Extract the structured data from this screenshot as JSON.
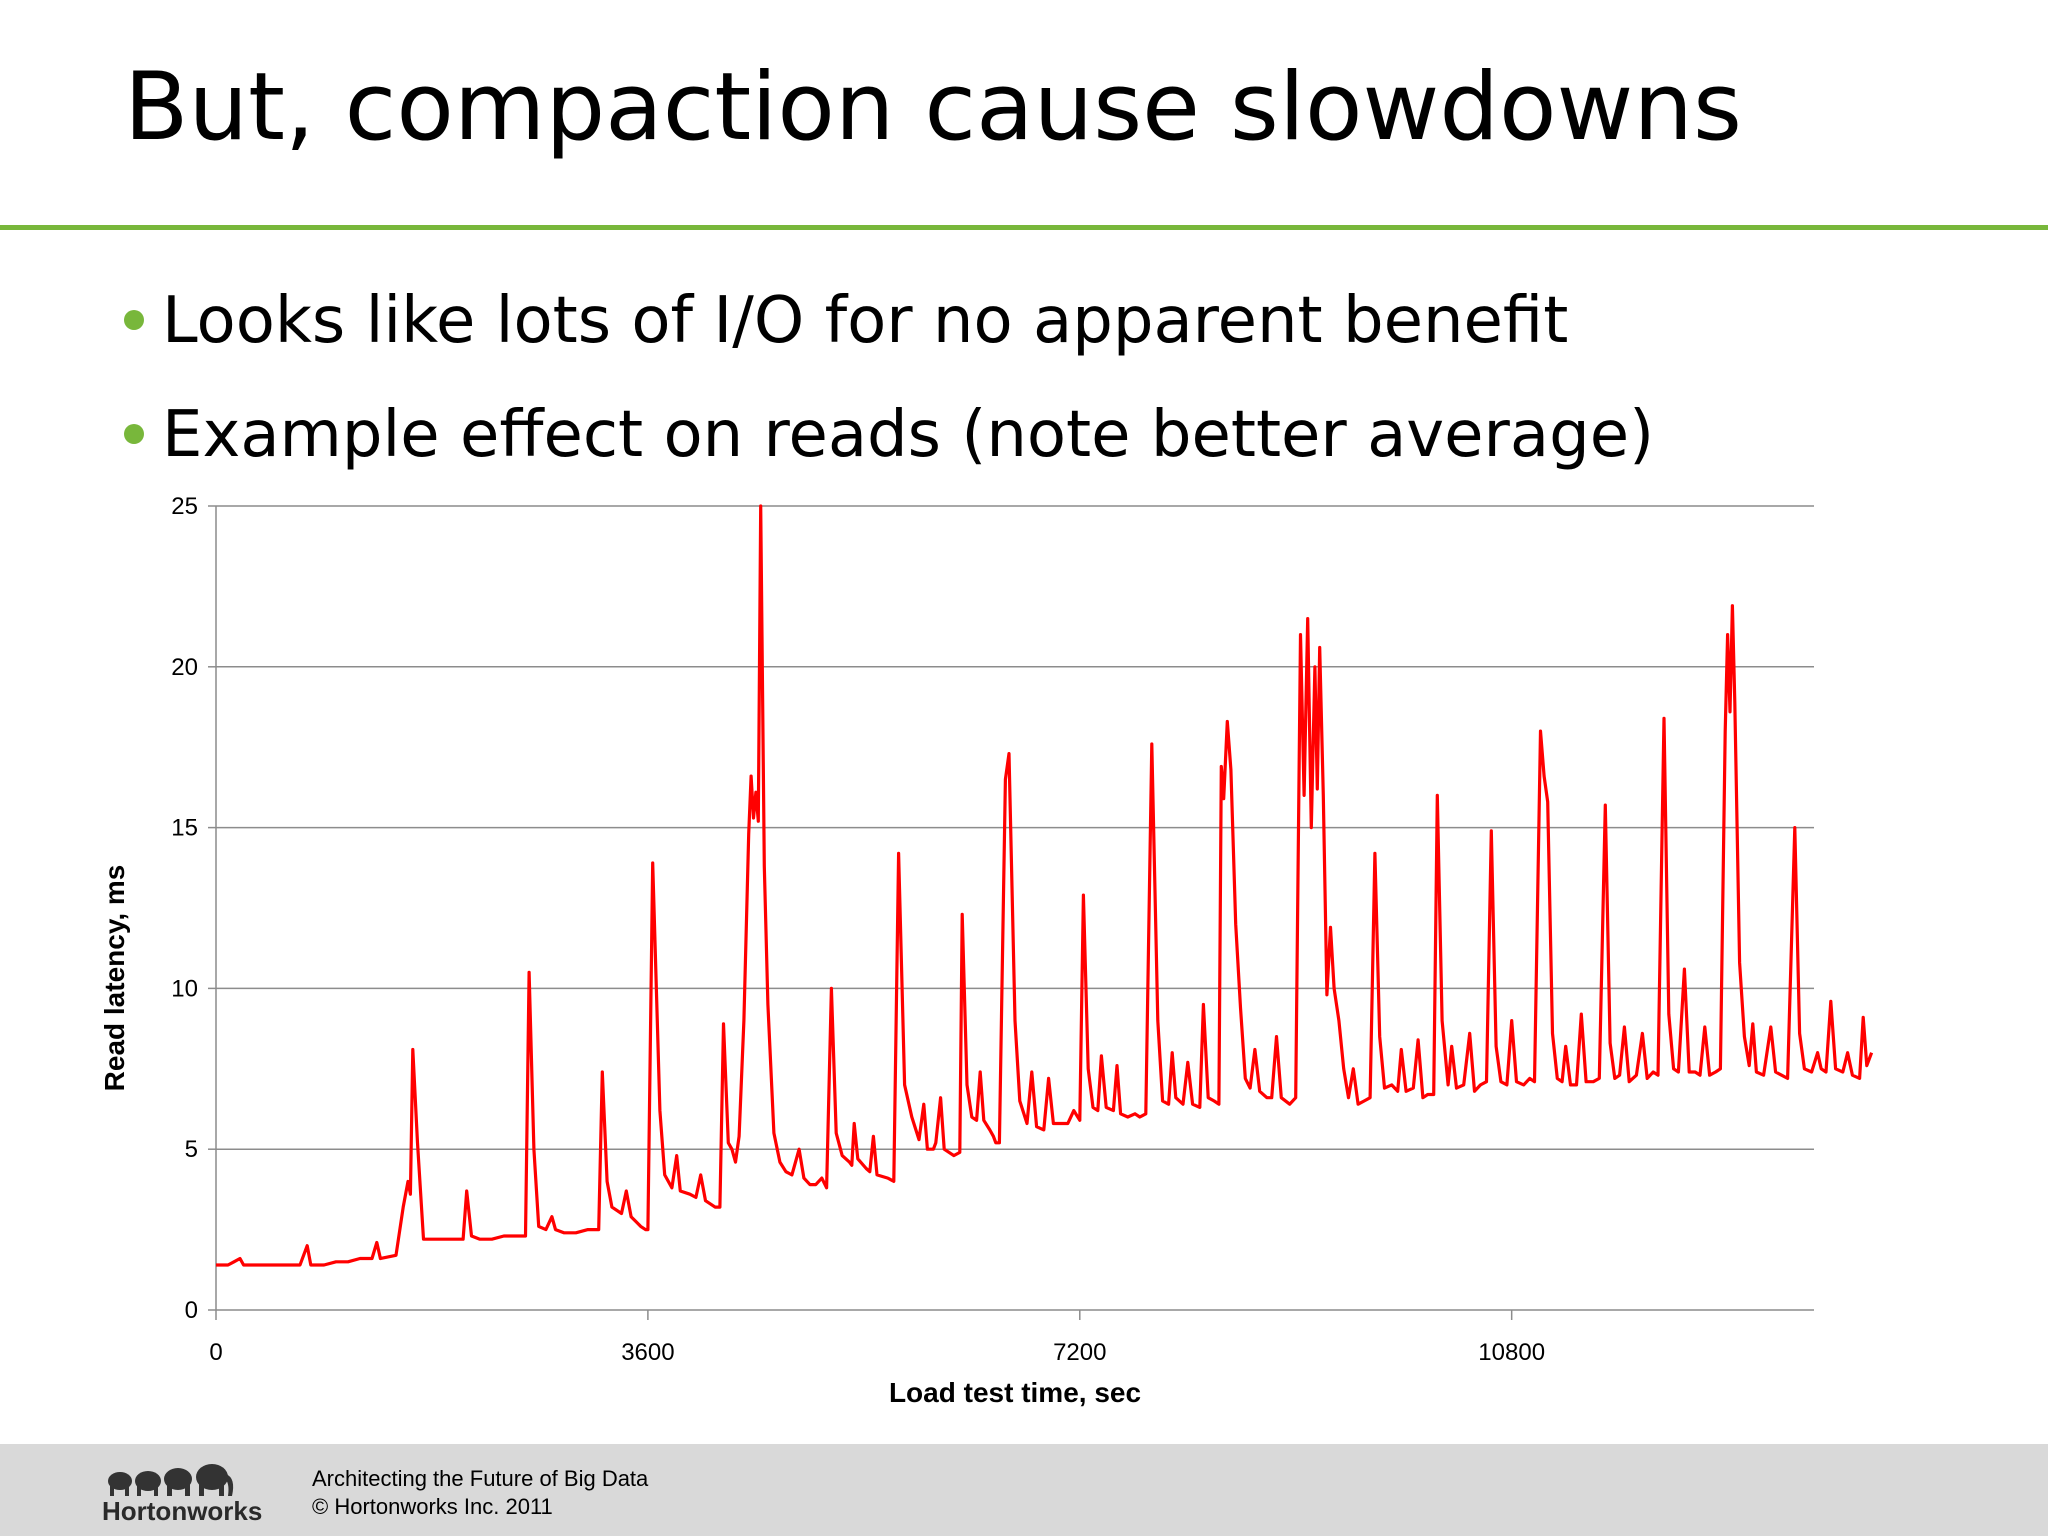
{
  "slide": {
    "title": "But, compaction cause slowdowns",
    "bullets": [
      "Looks like  lots of I/O for no apparent benefit",
      "Example effect on reads (note better average)"
    ],
    "accent_color": "#78b73b"
  },
  "chart_data": {
    "type": "line",
    "xlabel": "Load test time, sec",
    "ylabel": "Read latency, ms",
    "xlim": [
      0,
      13320
    ],
    "ylim": [
      0,
      25
    ],
    "xticks": [
      0,
      3600,
      7200,
      10800
    ],
    "yticks": [
      0,
      5,
      10,
      15,
      20,
      25
    ],
    "grid": "horizontal",
    "legend": "none",
    "series": [
      {
        "color": "#ff0000",
        "points": [
          [
            0,
            1.4
          ],
          [
            100,
            1.4
          ],
          [
            150,
            1.5
          ],
          [
            200,
            1.6
          ],
          [
            230,
            1.4
          ],
          [
            300,
            1.4
          ],
          [
            400,
            1.4
          ],
          [
            500,
            1.4
          ],
          [
            600,
            1.4
          ],
          [
            700,
            1.4
          ],
          [
            760,
            2.0
          ],
          [
            790,
            1.4
          ],
          [
            900,
            1.4
          ],
          [
            1000,
            1.5
          ],
          [
            1100,
            1.5
          ],
          [
            1200,
            1.6
          ],
          [
            1300,
            1.6
          ],
          [
            1340,
            2.1
          ],
          [
            1370,
            1.6
          ],
          [
            1500,
            1.7
          ],
          [
            1560,
            3.2
          ],
          [
            1600,
            4.0
          ],
          [
            1620,
            3.6
          ],
          [
            1640,
            8.1
          ],
          [
            1680,
            5.2
          ],
          [
            1730,
            2.2
          ],
          [
            1800,
            2.2
          ],
          [
            1900,
            2.2
          ],
          [
            2000,
            2.2
          ],
          [
            2060,
            2.2
          ],
          [
            2090,
            3.7
          ],
          [
            2130,
            2.3
          ],
          [
            2200,
            2.2
          ],
          [
            2300,
            2.2
          ],
          [
            2400,
            2.3
          ],
          [
            2500,
            2.3
          ],
          [
            2580,
            2.3
          ],
          [
            2610,
            10.5
          ],
          [
            2650,
            5.0
          ],
          [
            2690,
            2.6
          ],
          [
            2750,
            2.5
          ],
          [
            2800,
            2.9
          ],
          [
            2830,
            2.5
          ],
          [
            2900,
            2.4
          ],
          [
            3000,
            2.4
          ],
          [
            3100,
            2.5
          ],
          [
            3190,
            2.5
          ],
          [
            3220,
            7.4
          ],
          [
            3260,
            4.0
          ],
          [
            3300,
            3.2
          ],
          [
            3380,
            3.0
          ],
          [
            3420,
            3.7
          ],
          [
            3460,
            2.9
          ],
          [
            3540,
            2.6
          ],
          [
            3580,
            2.5
          ],
          [
            3600,
            2.5
          ],
          [
            3640,
            13.9
          ],
          [
            3700,
            6.2
          ],
          [
            3740,
            4.2
          ],
          [
            3800,
            3.8
          ],
          [
            3840,
            4.8
          ],
          [
            3870,
            3.7
          ],
          [
            3950,
            3.6
          ],
          [
            4000,
            3.5
          ],
          [
            4040,
            4.2
          ],
          [
            4080,
            3.4
          ],
          [
            4160,
            3.2
          ],
          [
            4200,
            3.2
          ],
          [
            4230,
            8.9
          ],
          [
            4270,
            5.2
          ],
          [
            4300,
            5.0
          ],
          [
            4330,
            4.6
          ],
          [
            4360,
            5.4
          ],
          [
            4400,
            9.0
          ],
          [
            4440,
            14.8
          ],
          [
            4460,
            16.6
          ],
          [
            4480,
            15.3
          ],
          [
            4500,
            16.1
          ],
          [
            4520,
            15.2
          ],
          [
            4540,
            25.0
          ],
          [
            4570,
            13.8
          ],
          [
            4600,
            9.5
          ],
          [
            4650,
            5.5
          ],
          [
            4700,
            4.6
          ],
          [
            4750,
            4.3
          ],
          [
            4800,
            4.2
          ],
          [
            4860,
            5.0
          ],
          [
            4900,
            4.1
          ],
          [
            4950,
            3.9
          ],
          [
            5000,
            3.9
          ],
          [
            5050,
            4.1
          ],
          [
            5090,
            3.8
          ],
          [
            5130,
            10.0
          ],
          [
            5170,
            5.5
          ],
          [
            5220,
            4.8
          ],
          [
            5280,
            4.6
          ],
          [
            5300,
            4.5
          ],
          [
            5320,
            5.8
          ],
          [
            5350,
            4.7
          ],
          [
            5420,
            4.4
          ],
          [
            5450,
            4.3
          ],
          [
            5480,
            5.4
          ],
          [
            5510,
            4.2
          ],
          [
            5600,
            4.1
          ],
          [
            5650,
            4.0
          ],
          [
            5690,
            14.2
          ],
          [
            5740,
            7.0
          ],
          [
            5800,
            6.0
          ],
          [
            5860,
            5.3
          ],
          [
            5900,
            6.4
          ],
          [
            5930,
            5.0
          ],
          [
            5980,
            5.0
          ],
          [
            6000,
            5.2
          ],
          [
            6040,
            6.6
          ],
          [
            6070,
            5.0
          ],
          [
            6150,
            4.8
          ],
          [
            6200,
            4.9
          ],
          [
            6220,
            12.3
          ],
          [
            6260,
            7.0
          ],
          [
            6300,
            6.0
          ],
          [
            6340,
            5.9
          ],
          [
            6370,
            7.4
          ],
          [
            6400,
            5.9
          ],
          [
            6450,
            5.6
          ],
          [
            6480,
            5.4
          ],
          [
            6500,
            5.2
          ],
          [
            6530,
            5.2
          ],
          [
            6580,
            16.5
          ],
          [
            6610,
            17.3
          ],
          [
            6660,
            9.0
          ],
          [
            6700,
            6.5
          ],
          [
            6760,
            5.8
          ],
          [
            6800,
            7.4
          ],
          [
            6840,
            5.7
          ],
          [
            6900,
            5.6
          ],
          [
            6940,
            7.2
          ],
          [
            6980,
            5.8
          ],
          [
            7050,
            5.8
          ],
          [
            7100,
            5.8
          ],
          [
            7150,
            6.2
          ],
          [
            7200,
            5.9
          ],
          [
            7230,
            12.9
          ],
          [
            7270,
            7.5
          ],
          [
            7310,
            6.3
          ],
          [
            7350,
            6.2
          ],
          [
            7380,
            7.9
          ],
          [
            7420,
            6.3
          ],
          [
            7480,
            6.2
          ],
          [
            7510,
            7.6
          ],
          [
            7540,
            6.1
          ],
          [
            7600,
            6.0
          ],
          [
            7660,
            6.1
          ],
          [
            7700,
            6.0
          ],
          [
            7750,
            6.1
          ],
          [
            7800,
            17.6
          ],
          [
            7850,
            9.0
          ],
          [
            7890,
            6.5
          ],
          [
            7940,
            6.4
          ],
          [
            7970,
            8.0
          ],
          [
            8000,
            6.6
          ],
          [
            8060,
            6.4
          ],
          [
            8100,
            7.7
          ],
          [
            8140,
            6.4
          ],
          [
            8200,
            6.3
          ],
          [
            8230,
            9.5
          ],
          [
            8270,
            6.6
          ],
          [
            8320,
            6.5
          ],
          [
            8360,
            6.4
          ],
          [
            8380,
            16.9
          ],
          [
            8400,
            15.9
          ],
          [
            8430,
            18.3
          ],
          [
            8460,
            16.8
          ],
          [
            8500,
            12.0
          ],
          [
            8540,
            9.4
          ],
          [
            8580,
            7.2
          ],
          [
            8620,
            6.9
          ],
          [
            8660,
            8.1
          ],
          [
            8700,
            6.8
          ],
          [
            8760,
            6.6
          ],
          [
            8800,
            6.6
          ],
          [
            8840,
            8.5
          ],
          [
            8880,
            6.6
          ],
          [
            8950,
            6.4
          ],
          [
            9000,
            6.6
          ],
          [
            9040,
            21.0
          ],
          [
            9070,
            16.0
          ],
          [
            9100,
            21.5
          ],
          [
            9130,
            15.0
          ],
          [
            9160,
            20.0
          ],
          [
            9180,
            16.2
          ],
          [
            9200,
            20.6
          ],
          [
            9230,
            16.0
          ],
          [
            9260,
            9.8
          ],
          [
            9290,
            11.9
          ],
          [
            9320,
            10.0
          ],
          [
            9360,
            9.0
          ],
          [
            9400,
            7.5
          ],
          [
            9440,
            6.6
          ],
          [
            9480,
            7.5
          ],
          [
            9520,
            6.4
          ],
          [
            9570,
            6.5
          ],
          [
            9620,
            6.6
          ],
          [
            9660,
            14.2
          ],
          [
            9700,
            8.5
          ],
          [
            9740,
            6.9
          ],
          [
            9800,
            7.0
          ],
          [
            9850,
            6.8
          ],
          [
            9880,
            8.1
          ],
          [
            9920,
            6.8
          ],
          [
            9980,
            6.9
          ],
          [
            10020,
            8.4
          ],
          [
            10060,
            6.6
          ],
          [
            10100,
            6.7
          ],
          [
            10150,
            6.7
          ],
          [
            10180,
            16.0
          ],
          [
            10220,
            9.0
          ],
          [
            10270,
            7.0
          ],
          [
            10300,
            8.2
          ],
          [
            10340,
            6.9
          ],
          [
            10400,
            7.0
          ],
          [
            10450,
            8.6
          ],
          [
            10490,
            6.8
          ],
          [
            10540,
            7.0
          ],
          [
            10590,
            7.1
          ],
          [
            10630,
            14.9
          ],
          [
            10670,
            8.2
          ],
          [
            10710,
            7.1
          ],
          [
            10760,
            7.0
          ],
          [
            10800,
            9.0
          ],
          [
            10840,
            7.1
          ],
          [
            10900,
            7.0
          ],
          [
            10950,
            7.2
          ],
          [
            10990,
            7.1
          ],
          [
            11040,
            18.0
          ],
          [
            11070,
            16.6
          ],
          [
            11100,
            15.8
          ],
          [
            11140,
            8.6
          ],
          [
            11180,
            7.2
          ],
          [
            11220,
            7.1
          ],
          [
            11250,
            8.2
          ],
          [
            11290,
            7.0
          ],
          [
            11340,
            7.0
          ],
          [
            11380,
            9.2
          ],
          [
            11420,
            7.1
          ],
          [
            11480,
            7.1
          ],
          [
            11530,
            7.2
          ],
          [
            11580,
            15.7
          ],
          [
            11620,
            8.3
          ],
          [
            11660,
            7.2
          ],
          [
            11700,
            7.3
          ],
          [
            11740,
            8.8
          ],
          [
            11780,
            7.1
          ],
          [
            11840,
            7.3
          ],
          [
            11890,
            8.6
          ],
          [
            11930,
            7.2
          ],
          [
            11980,
            7.4
          ],
          [
            12020,
            7.3
          ],
          [
            12070,
            18.4
          ],
          [
            12110,
            9.2
          ],
          [
            12150,
            7.5
          ],
          [
            12190,
            7.4
          ],
          [
            12240,
            10.6
          ],
          [
            12280,
            7.4
          ],
          [
            12330,
            7.4
          ],
          [
            12370,
            7.3
          ],
          [
            12410,
            8.8
          ],
          [
            12450,
            7.3
          ],
          [
            12500,
            7.4
          ],
          [
            12540,
            7.5
          ],
          [
            12580,
            18.0
          ],
          [
            12600,
            21.0
          ],
          [
            12620,
            18.6
          ],
          [
            12640,
            21.9
          ],
          [
            12660,
            18.9
          ],
          [
            12700,
            10.8
          ],
          [
            12740,
            8.5
          ],
          [
            12780,
            7.6
          ],
          [
            12810,
            8.9
          ],
          [
            12840,
            7.4
          ],
          [
            12900,
            7.3
          ],
          [
            12960,
            8.8
          ],
          [
            13000,
            7.4
          ],
          [
            13050,
            7.3
          ],
          [
            13100,
            7.2
          ],
          [
            13160,
            15.0
          ],
          [
            13200,
            8.6
          ],
          [
            13240,
            7.5
          ],
          [
            13300,
            7.4
          ],
          [
            13350,
            8.0
          ],
          [
            13380,
            7.5
          ],
          [
            13420,
            7.4
          ],
          [
            13460,
            9.6
          ],
          [
            13500,
            7.5
          ],
          [
            13560,
            7.4
          ],
          [
            13600,
            8.0
          ],
          [
            13640,
            7.3
          ],
          [
            13700,
            7.2
          ],
          [
            13730,
            9.1
          ],
          [
            13760,
            7.6
          ],
          [
            13800,
            8.0
          ]
        ]
      }
    ]
  },
  "footer": {
    "brand": "Hortonworks",
    "tagline": "Architecting the Future of Big Data",
    "copyright": "© Hortonworks Inc. 2011"
  }
}
